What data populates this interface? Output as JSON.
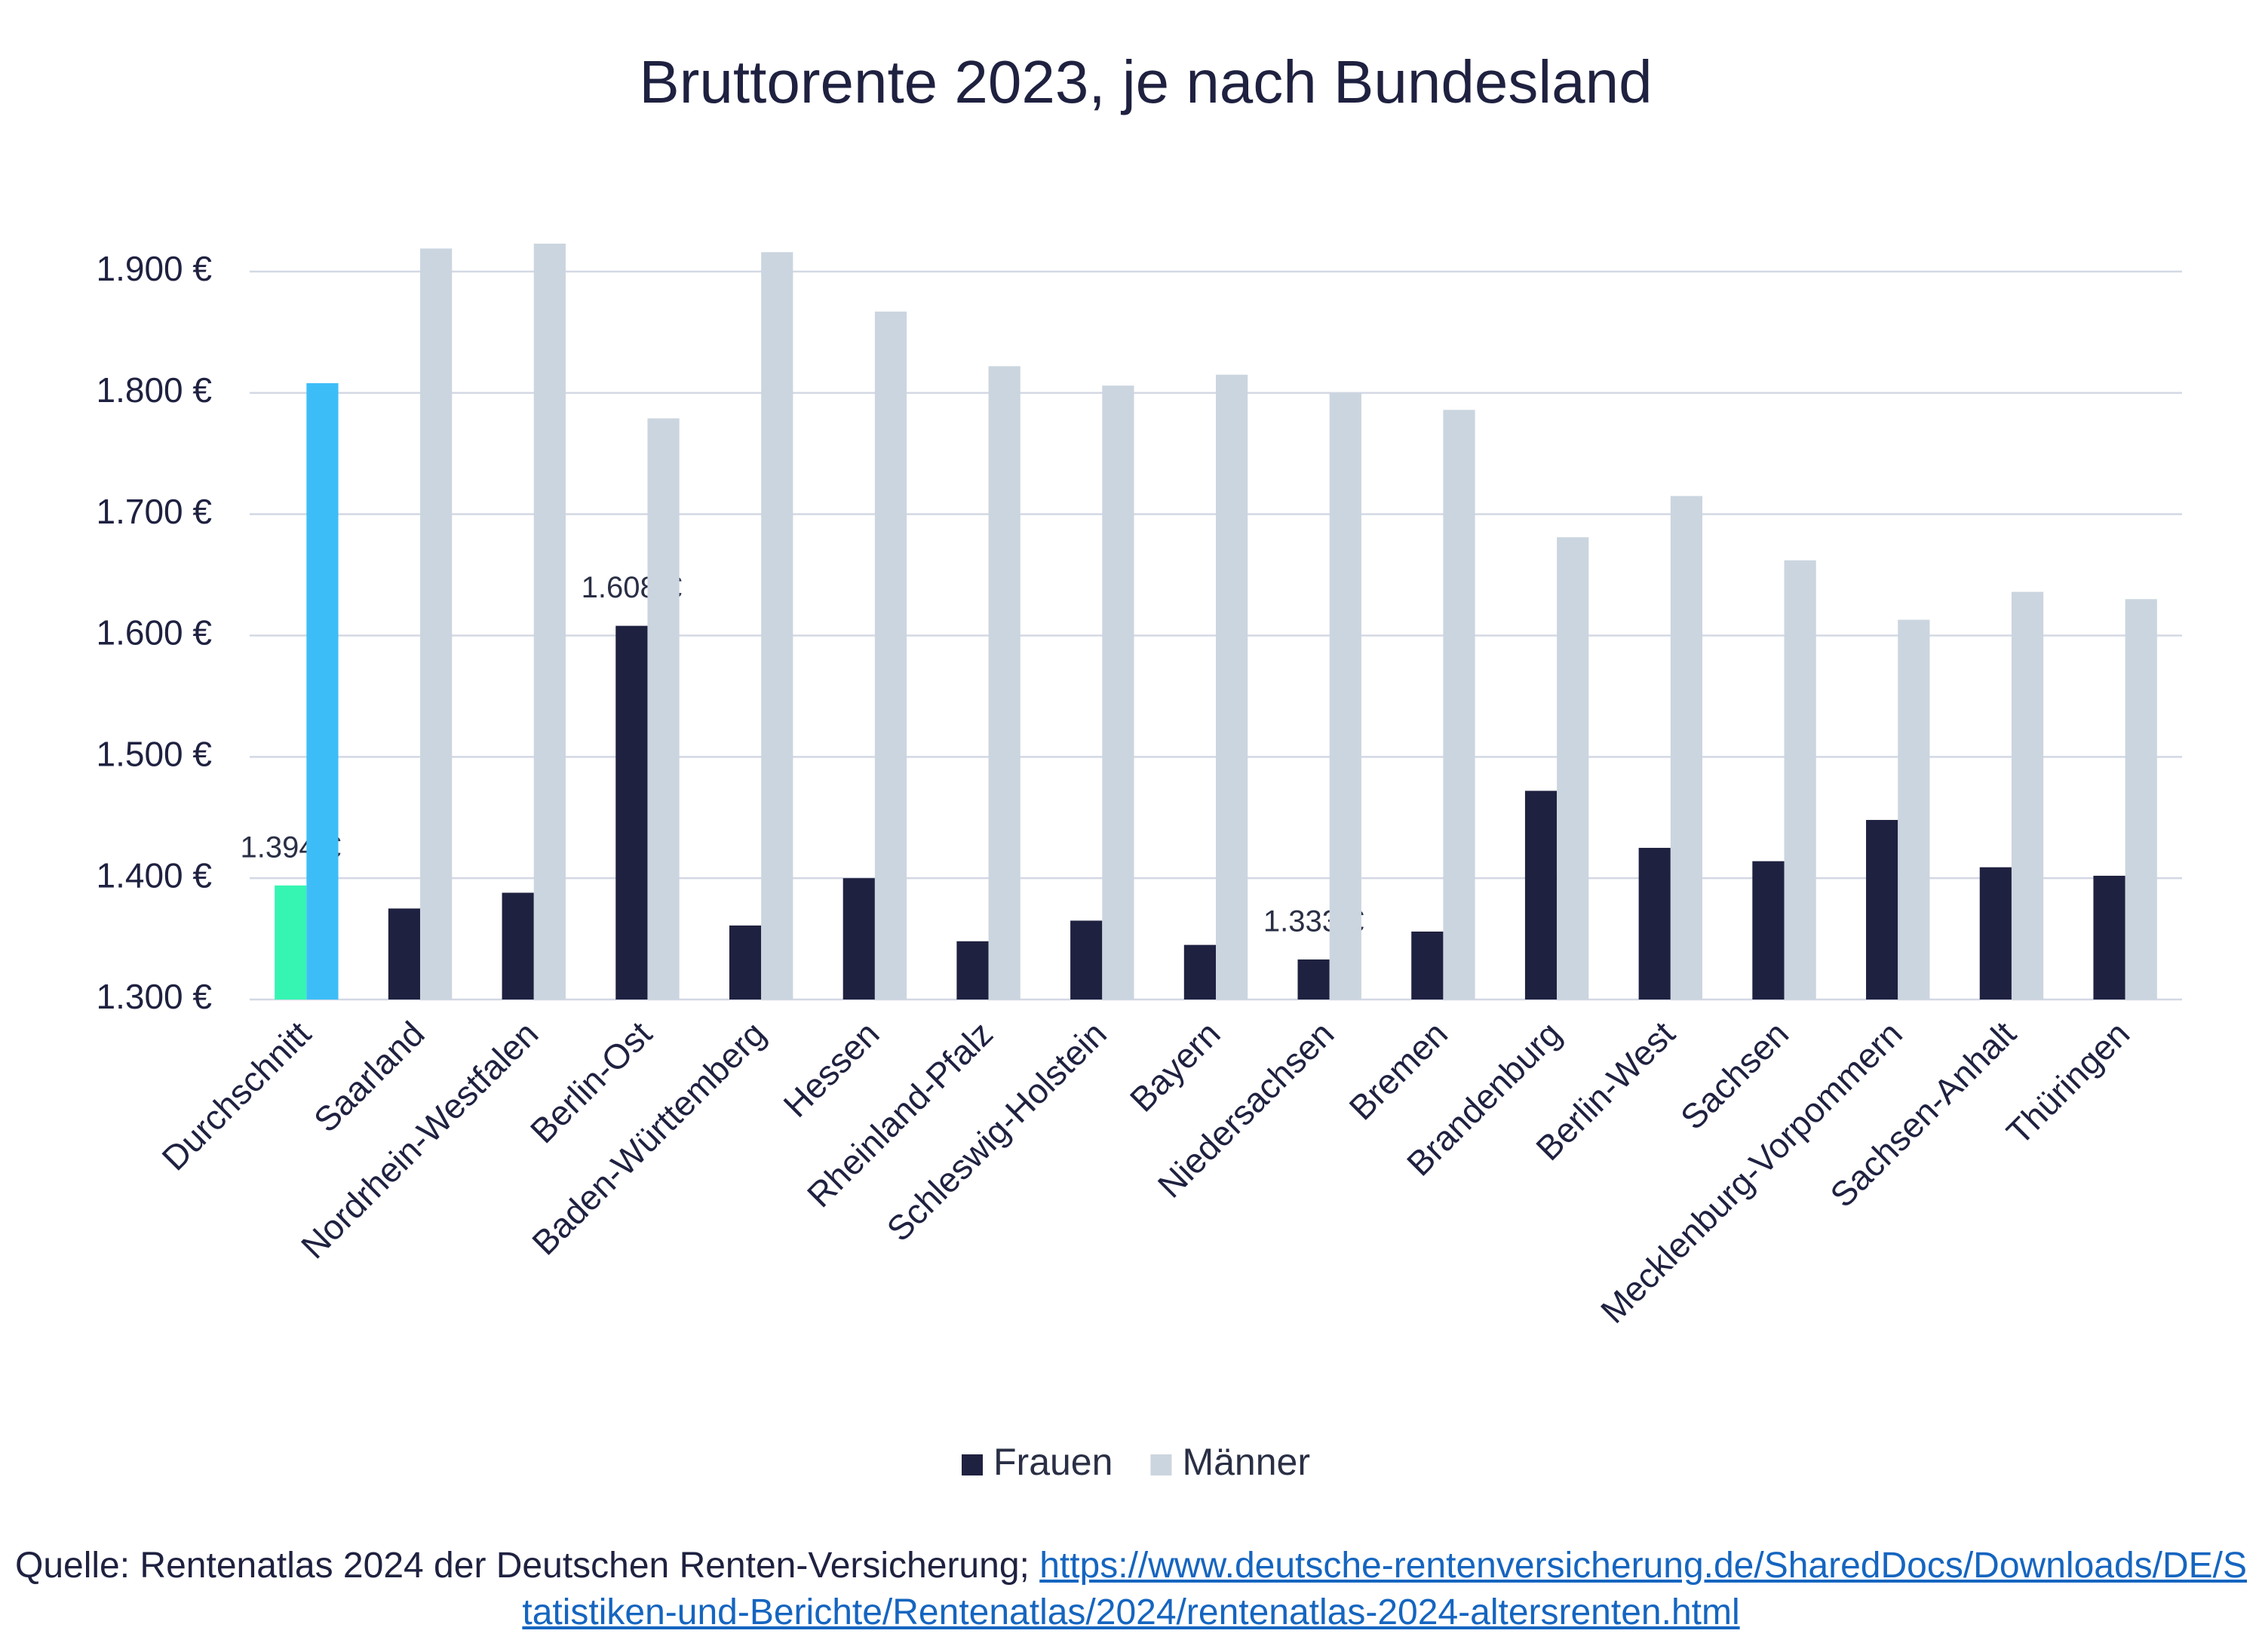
{
  "chart_data": {
    "type": "bar",
    "title": "Bruttorente 2023, je nach Bundesland",
    "categories": [
      "Durchschnitt",
      "Saarland",
      "Nordrhein-Westfalen",
      "Berlin-Ost",
      "Baden-Württemberg",
      "Hessen",
      "Rheinland-Pfalz",
      "Schleswig-Holstein",
      "Bayern",
      "Niedersachsen",
      "Bremen",
      "Brandenburg",
      "Berlin-West",
      "Sachsen",
      "Mecklenburg-Vorpommern",
      "Sachsen-Anhalt",
      "Thüringen"
    ],
    "series": [
      {
        "name": "Frauen",
        "color": "#1f2140",
        "point_colors": [
          "#36f5b2",
          "#1f2140",
          "#1f2140",
          "#1f2140",
          "#1f2140",
          "#1f2140",
          "#1f2140",
          "#1f2140",
          "#1f2140",
          "#1f2140",
          "#1f2140",
          "#1f2140",
          "#1f2140",
          "#1f2140",
          "#1f2140",
          "#1f2140",
          "#1f2140"
        ],
        "values": [
          1394,
          1375,
          1388,
          1608,
          1361,
          1400,
          1348,
          1365,
          1345,
          1333,
          1356,
          1472,
          1425,
          1414,
          1448,
          1409,
          1402
        ],
        "value_labels": [
          "1.394 €",
          null,
          null,
          "1.608 €",
          null,
          null,
          null,
          null,
          null,
          "1.333 €",
          null,
          null,
          null,
          null,
          null,
          null,
          null
        ]
      },
      {
        "name": "Männer",
        "color": "#cbd5df",
        "point_colors": [
          "#3dbdf7",
          "#cbd5df",
          "#cbd5df",
          "#cbd5df",
          "#cbd5df",
          "#cbd5df",
          "#cbd5df",
          "#cbd5df",
          "#cbd5df",
          "#cbd5df",
          "#cbd5df",
          "#cbd5df",
          "#cbd5df",
          "#cbd5df",
          "#cbd5df",
          "#cbd5df",
          "#cbd5df"
        ],
        "values": [
          1808,
          1919,
          1923,
          1779,
          1916,
          1867,
          1822,
          1806,
          1815,
          1800,
          1786,
          1681,
          1715,
          1662,
          1613,
          1636,
          1630
        ]
      }
    ],
    "ylim": [
      1300,
      1900
    ],
    "yticks": [
      {
        "value": 1300,
        "label": "1.300 €"
      },
      {
        "value": 1400,
        "label": "1.400 €"
      },
      {
        "value": 1500,
        "label": "1.500 €"
      },
      {
        "value": 1600,
        "label": "1.600 €"
      },
      {
        "value": 1700,
        "label": "1.700 €"
      },
      {
        "value": 1800,
        "label": "1.800 €"
      },
      {
        "value": 1900,
        "label": "1.900 €"
      }
    ],
    "grid": true,
    "legend": "bottom",
    "source": {
      "text": "Quelle: Rentenatlas 2024 der Deutschen Renten-Versicherung;",
      "link": "https://www.deutsche-rentenversicherung.de/SharedDocs/Downloads/DE/Statistiken-und-Berichte/Rentenatlas/2024/rentenatlas-2024-altersrenten.html"
    }
  }
}
